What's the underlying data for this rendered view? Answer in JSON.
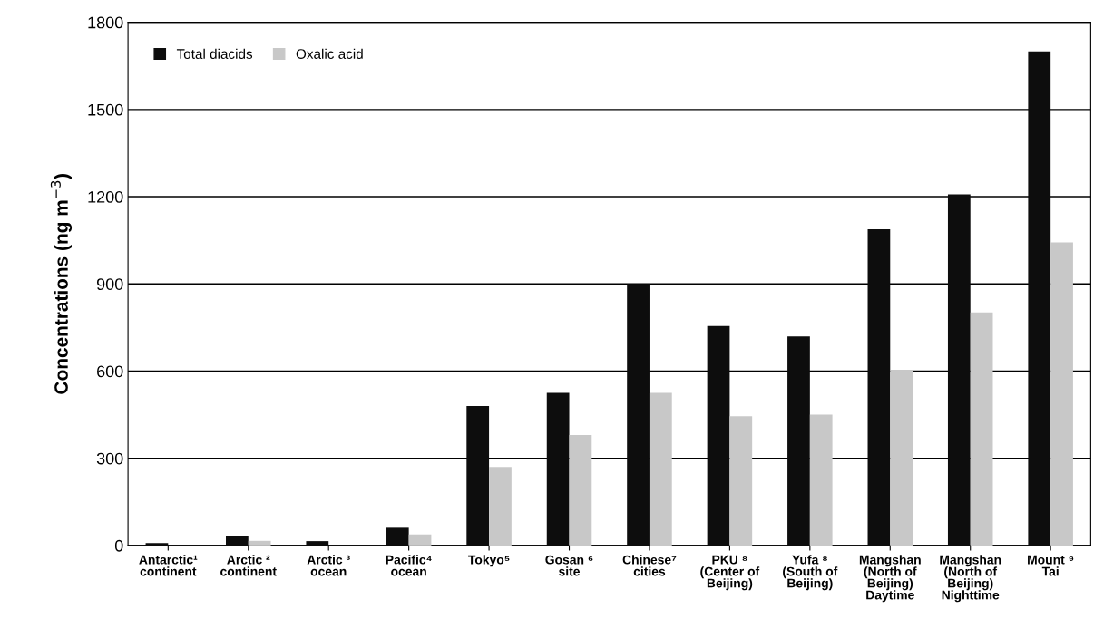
{
  "chart_data": {
    "type": "bar",
    "ylabel": "Concentrations (ng m$^{−3}$)",
    "categories": [
      "Antarctic¹\ncontinent",
      "Arctic ²\ncontinent",
      "Arctic ³\nocean",
      "Pacific⁴\nocean",
      "Tokyo⁵",
      "Gosan ⁶\nsite",
      "Chinese⁷\ncities",
      "PKU ⁸\n(Center of\nBeijing)",
      "Yufa ⁸\n(South of\nBeijing)",
      "Mangshan\n(North of\nBeijing)\nDaytime",
      "Mangshan\n(North of\nBeijing)\nNighttime",
      "Mount ⁹\nTai"
    ],
    "series": [
      {
        "name": "Total diacids",
        "color": "#0d0d0d",
        "values": [
          8,
          34,
          15,
          61,
          480,
          525,
          900,
          755,
          719,
          1088,
          1208,
          1700
        ]
      },
      {
        "name": "Oxalic acid",
        "color": "#c8c8c8",
        "values": [
          null,
          16,
          null,
          38,
          270,
          380,
          525,
          445,
          450,
          605,
          802,
          1043
        ]
      }
    ],
    "ylim": [
      0,
      1800
    ],
    "yticks": [
      0,
      300,
      600,
      900,
      1200,
      1500,
      1800
    ],
    "grid": "y",
    "legend": "top left"
  }
}
